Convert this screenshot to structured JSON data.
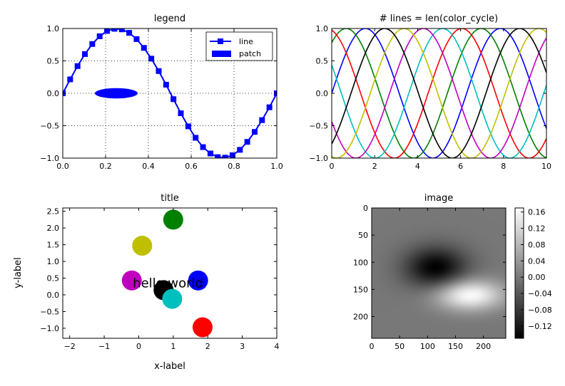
{
  "figure": {
    "background": "#ffffff"
  },
  "chart_data": [
    {
      "id": "legend",
      "type": "line",
      "title": "legend",
      "xlim": [
        0,
        1
      ],
      "ylim": [
        -1,
        1
      ],
      "xticks": [
        "0.0",
        "0.2",
        "0.4",
        "0.6",
        "0.8",
        "1.0"
      ],
      "yticks": [
        "−1.0",
        "−0.5",
        "0.0",
        "0.5",
        "1.0"
      ],
      "xtick_values": [
        0,
        0.2,
        0.4,
        0.6,
        0.8,
        1.0
      ],
      "ytick_values": [
        -1,
        -0.5,
        0,
        0.5,
        1
      ],
      "grid": true,
      "legend": {
        "position": "top-right",
        "entries": [
          {
            "label": "line",
            "marker": "square-line",
            "color": "#0000ff"
          },
          {
            "label": "patch",
            "marker": "patch",
            "color": "#0000ff"
          }
        ]
      },
      "series": [
        {
          "name": "line",
          "color": "#0000ff",
          "marker": "s",
          "x": [
            0.0,
            0.0345,
            0.069,
            0.1034,
            0.1379,
            0.1724,
            0.2069,
            0.2414,
            0.2759,
            0.3103,
            0.3448,
            0.3793,
            0.4138,
            0.4483,
            0.4828,
            0.5172,
            0.5517,
            0.5862,
            0.6207,
            0.6552,
            0.6897,
            0.7241,
            0.7586,
            0.7931,
            0.8276,
            0.8621,
            0.8966,
            0.931,
            0.9655,
            1.0
          ],
          "y": [
            0.0,
            0.215,
            0.4199,
            0.6052,
            0.7604,
            0.8802,
            0.9624,
            0.9958,
            0.9868,
            0.9324,
            0.8363,
            0.7004,
            0.535,
            0.3428,
            0.1327,
            -0.0905,
            -0.3081,
            -0.5098,
            -0.6866,
            -0.8305,
            -0.9289,
            -0.9848,
            -0.9931,
            -0.9557,
            -0.8723,
            -0.7494,
            -0.5957,
            -0.4138,
            -0.2156,
            0.0
          ]
        }
      ],
      "patches": [
        {
          "name": "patch",
          "shape": "ellipse",
          "center": [
            0.25,
            0.0
          ],
          "width": 0.2,
          "height": 0.16,
          "color": "#0000ff"
        }
      ]
    },
    {
      "id": "color_cycle",
      "type": "line",
      "title": "# lines = len(color_cycle)",
      "xlim": [
        0,
        10
      ],
      "ylim": [
        -1,
        1
      ],
      "xticks": [
        "0",
        "2",
        "4",
        "6",
        "8",
        "10"
      ],
      "yticks": [
        "−1.0",
        "−0.5",
        "0.0",
        "0.5",
        "1.0"
      ],
      "xtick_values": [
        0,
        2,
        4,
        6,
        8,
        10
      ],
      "ytick_values": [
        -1,
        -0.5,
        0,
        0.5,
        1
      ],
      "grid": false,
      "function": "y = sin(x + phase)",
      "series": [
        {
          "color": "#0000ff",
          "phase": 0.0
        },
        {
          "color": "#008000",
          "phase": 0.8976
        },
        {
          "color": "#ff0000",
          "phase": 1.7952
        },
        {
          "color": "#00bfbf",
          "phase": 2.6928
        },
        {
          "color": "#bf00bf",
          "phase": 3.5904
        },
        {
          "color": "#bfbf00",
          "phase": 4.488
        },
        {
          "color": "#000000",
          "phase": 5.3856
        }
      ]
    },
    {
      "id": "scatter",
      "type": "scatter",
      "title": "title",
      "xlabel": "x-label",
      "ylabel": "y-label",
      "xlim": [
        -2.2,
        4
      ],
      "ylim": [
        -1.3,
        2.6
      ],
      "xticks": [
        "−2",
        "−1",
        "0",
        "1",
        "2",
        "3",
        "4"
      ],
      "yticks": [
        "−1.0",
        "−0.5",
        "0.0",
        "0.5",
        "1.0",
        "1.5",
        "2.0",
        "2.5"
      ],
      "xtick_values": [
        -2,
        -1,
        0,
        1,
        2,
        3,
        4
      ],
      "ytick_values": [
        -1,
        -0.5,
        0,
        0.5,
        1,
        1.5,
        2,
        2.5
      ],
      "annotation": {
        "text": "hello world",
        "x": 0.85,
        "y": 0.35
      },
      "points": [
        {
          "x": 1.0,
          "y": 2.25,
          "color": "#008000"
        },
        {
          "x": 0.1,
          "y": 1.47,
          "color": "#bfbf00"
        },
        {
          "x": -0.2,
          "y": 0.43,
          "color": "#bf00bf"
        },
        {
          "x": 0.72,
          "y": 0.14,
          "color": "#000000"
        },
        {
          "x": 0.97,
          "y": -0.12,
          "color": "#00bfbf"
        },
        {
          "x": 1.72,
          "y": 0.43,
          "color": "#0000ff"
        },
        {
          "x": 1.85,
          "y": -0.97,
          "color": "#ff0000"
        }
      ]
    },
    {
      "id": "image",
      "type": "heatmap",
      "title": "image",
      "xlim": [
        0,
        240
      ],
      "ylim": [
        240,
        0
      ],
      "xticks": [
        "0",
        "50",
        "100",
        "150",
        "200"
      ],
      "yticks": [
        "0",
        "50",
        "100",
        "150",
        "200"
      ],
      "xtick_values": [
        0,
        50,
        100,
        150,
        200
      ],
      "ytick_values": [
        0,
        50,
        100,
        150,
        200
      ],
      "colormap": "gray",
      "vmin": -0.15,
      "vmax": 0.17,
      "minimum": {
        "x": 115,
        "y": 110,
        "value": -0.15
      },
      "maximum": {
        "x": 175,
        "y": 160,
        "value": 0.17
      },
      "colorbar_ticks": [
        "0.16",
        "0.12",
        "0.08",
        "0.04",
        "0.00",
        "−0.04",
        "−0.08",
        "−0.12"
      ],
      "colorbar_tick_values": [
        0.16,
        0.12,
        0.08,
        0.04,
        0.0,
        -0.04,
        -0.08,
        -0.12
      ]
    }
  ]
}
